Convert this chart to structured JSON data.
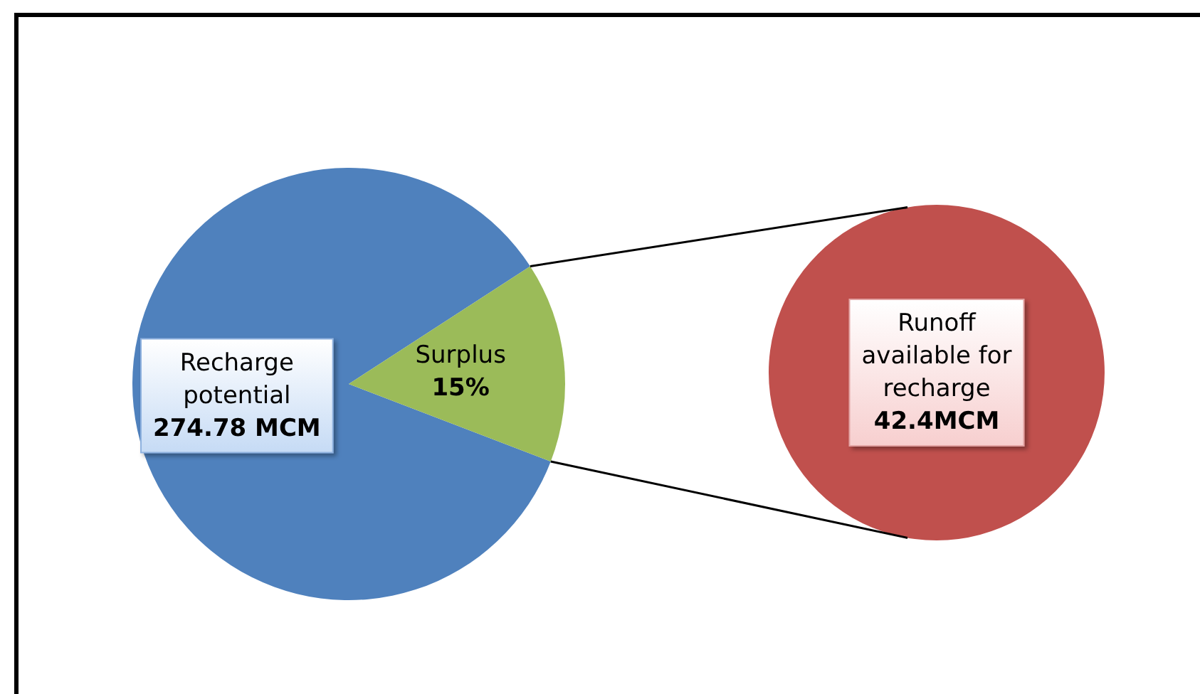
{
  "chart_data": [
    {
      "type": "pie",
      "categories": [
        "Recharge potential",
        "Surplus"
      ],
      "values": [
        85,
        15
      ],
      "value_labels": [
        null,
        "15%"
      ],
      "annotations": [
        "274.78 MCM"
      ],
      "colors": [
        "#4f81bd",
        "#9bbb59"
      ]
    },
    {
      "type": "pie",
      "categories": [
        "Runoff available for recharge"
      ],
      "values": [
        42.4
      ],
      "value_labels": [
        "42.4MCM"
      ],
      "colors": [
        "#c0504d"
      ]
    }
  ]
}
